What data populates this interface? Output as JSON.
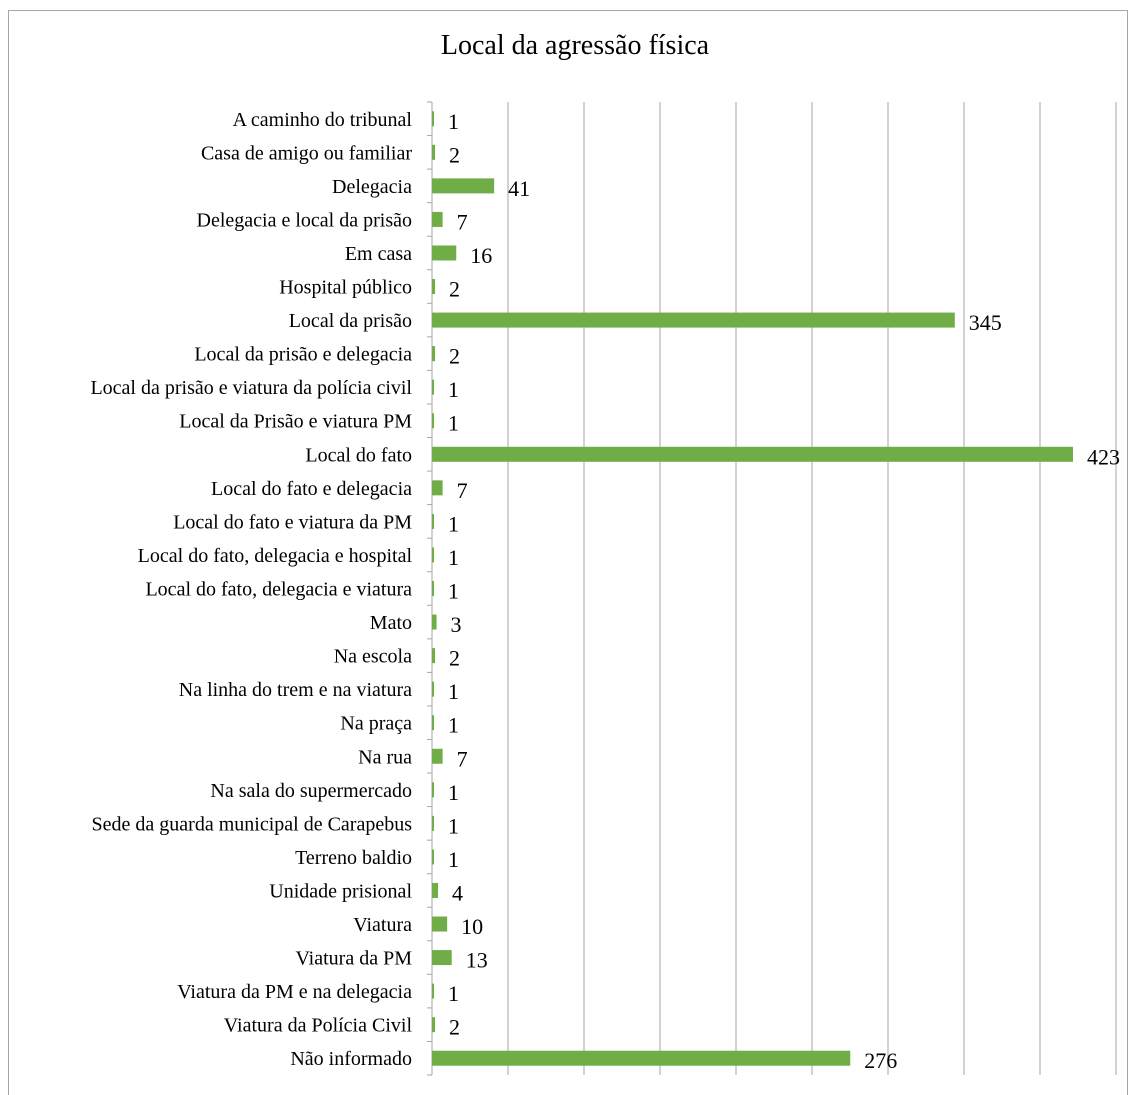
{
  "chart_data": {
    "type": "bar",
    "orientation": "horizontal",
    "title": "Local da agressão física",
    "categories": [
      "A caminho do tribunal",
      "Casa de amigo ou familiar",
      "Delegacia",
      "Delegacia e local da prisão",
      "Em casa",
      "Hospital público",
      "Local da prisão",
      "Local da prisão e delegacia",
      "Local da prisão e viatura da polícia civil",
      "Local da Prisão e viatura PM",
      "Local do fato",
      "Local do fato e delegacia",
      "Local do fato e viatura da PM",
      "Local do fato, delegacia e hospital",
      "Local do fato, delegacia e viatura",
      "Mato",
      "Na escola",
      "Na linha do trem e na viatura",
      "Na praça",
      "Na rua",
      "Na sala do supermercado",
      "Sede da guarda municipal de Carapebus",
      "Terreno baldio",
      "Unidade prisional",
      "Viatura",
      "Viatura da PM",
      "Viatura da PM e na delegacia",
      "Viatura da Polícia Civil",
      "Não informado"
    ],
    "values": [
      1,
      2,
      41,
      7,
      16,
      2,
      345,
      2,
      1,
      1,
      423,
      7,
      1,
      1,
      1,
      3,
      2,
      1,
      1,
      7,
      1,
      1,
      1,
      4,
      10,
      13,
      1,
      2,
      276
    ],
    "xlim": [
      0,
      450
    ],
    "grid": true,
    "legend": "none",
    "bar_color": "#70ad47",
    "grid_color": "#a6a6a6"
  }
}
